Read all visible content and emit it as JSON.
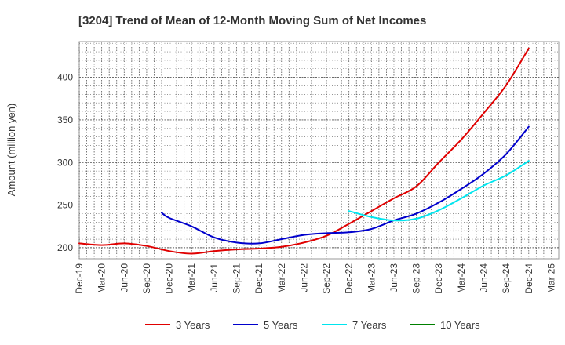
{
  "chart_data": {
    "type": "line",
    "title": "[3204]  Trend of Mean of 12-Month Moving Sum of Net Incomes",
    "xlabel": "",
    "ylabel": "Amount (million yen)",
    "x_ticks": [
      "Dec-19",
      "Mar-20",
      "Jun-20",
      "Sep-20",
      "Dec-20",
      "Mar-21",
      "Jun-21",
      "Sep-21",
      "Dec-21",
      "Mar-22",
      "Jun-22",
      "Sep-22",
      "Dec-22",
      "Mar-23",
      "Jun-23",
      "Sep-23",
      "Dec-23",
      "Mar-24",
      "Jun-24",
      "Sep-24",
      "Dec-24",
      "Mar-25"
    ],
    "ylim": [
      187,
      442
    ],
    "y_ticks": [
      200,
      250,
      300,
      350,
      400
    ],
    "grid": true,
    "legend_position": "bottom",
    "series": [
      {
        "name": "3 Years",
        "color": "#e00000",
        "points": [
          [
            "Dec-19",
            205
          ],
          [
            "Mar-20",
            203
          ],
          [
            "Jun-20",
            205
          ],
          [
            "Sep-20",
            202
          ],
          [
            "Dec-20",
            196
          ],
          [
            "Mar-21",
            193
          ],
          [
            "Jun-21",
            196
          ],
          [
            "Sep-21",
            198
          ],
          [
            "Dec-21",
            199
          ],
          [
            "Mar-22",
            201
          ],
          [
            "Jun-22",
            206
          ],
          [
            "Sep-22",
            214
          ],
          [
            "Dec-22",
            228
          ],
          [
            "Mar-23",
            243
          ],
          [
            "Jun-23",
            258
          ],
          [
            "Sep-23",
            272
          ],
          [
            "Dec-23",
            300
          ],
          [
            "Mar-24",
            327
          ],
          [
            "Jun-24",
            358
          ],
          [
            "Sep-24",
            391
          ],
          [
            "Dec-24",
            434
          ]
        ]
      },
      {
        "name": "5 Years",
        "color": "#0000cc",
        "points": [
          [
            "Nov-20",
            241
          ],
          [
            "Dec-20",
            235
          ],
          [
            "Mar-21",
            225
          ],
          [
            "Jun-21",
            212
          ],
          [
            "Sep-21",
            206
          ],
          [
            "Dec-21",
            205
          ],
          [
            "Mar-22",
            210
          ],
          [
            "Jun-22",
            215
          ],
          [
            "Sep-22",
            217
          ],
          [
            "Dec-22",
            218
          ],
          [
            "Mar-23",
            222
          ],
          [
            "Jun-23",
            232
          ],
          [
            "Sep-23",
            240
          ],
          [
            "Dec-23",
            253
          ],
          [
            "Mar-24",
            269
          ],
          [
            "Jun-24",
            287
          ],
          [
            "Sep-24",
            310
          ],
          [
            "Dec-24",
            342
          ]
        ]
      },
      {
        "name": "7 Years",
        "color": "#00e5ee",
        "points": [
          [
            "Dec-22",
            243
          ],
          [
            "Mar-23",
            236
          ],
          [
            "Jun-23",
            232
          ],
          [
            "Sep-23",
            234
          ],
          [
            "Dec-23",
            244
          ],
          [
            "Mar-24",
            258
          ],
          [
            "Jun-24",
            273
          ],
          [
            "Sep-24",
            285
          ],
          [
            "Dec-24",
            302
          ]
        ]
      },
      {
        "name": "10 Years",
        "color": "#008000",
        "points": []
      }
    ]
  }
}
